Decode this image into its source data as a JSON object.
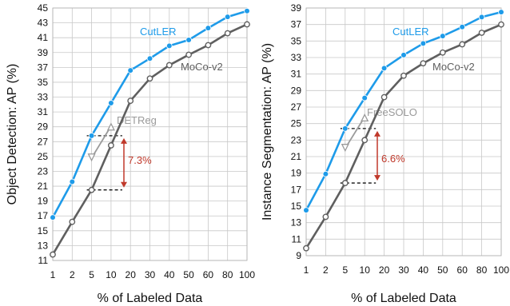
{
  "chart_data": [
    {
      "type": "line",
      "xlabel": "% of Labeled Data",
      "ylabel": "Object Detection: AP (%)",
      "x": [
        "1",
        "2",
        "5",
        "10",
        "20",
        "30",
        "40",
        "50",
        "60",
        "80",
        "100"
      ],
      "ylim": [
        11,
        45
      ],
      "yticks": [
        11,
        13,
        15,
        17,
        19,
        21,
        23,
        25,
        27,
        29,
        31,
        33,
        35,
        37,
        39,
        41,
        43,
        45
      ],
      "grid": true,
      "series": [
        {
          "name": "CutLER",
          "color": "#1e9be9",
          "values": [
            16.8,
            21.6,
            27.8,
            32.2,
            36.6,
            38.2,
            39.9,
            40.7,
            42.3,
            43.8,
            44.6
          ]
        },
        {
          "name": "MoCo-v2",
          "color": "#5f5f5f",
          "values": [
            11.8,
            16.2,
            20.5,
            26.5,
            32.5,
            35.5,
            37.3,
            38.7,
            40.0,
            41.6,
            42.8
          ]
        }
      ],
      "extra_series": [
        {
          "name": "DETReg",
          "color": "#9a9a9a",
          "x_index": [
            2,
            3
          ],
          "values": [
            24.8,
            29.1
          ]
        }
      ],
      "annotation": {
        "text": "7.3%",
        "x_index": 2,
        "y_top": 27.8,
        "y_bottom": 20.5,
        "color": "#c0392b"
      }
    },
    {
      "type": "line",
      "xlabel": "% of Labeled Data",
      "ylabel": "Instance Segmentation: AP (%)",
      "x": [
        "1",
        "2",
        "5",
        "10",
        "20",
        "30",
        "40",
        "50",
        "60",
        "80",
        "100"
      ],
      "ylim": [
        9,
        39
      ],
      "yticks": [
        9,
        11,
        13,
        15,
        17,
        19,
        21,
        23,
        25,
        27,
        29,
        31,
        33,
        35,
        37,
        39
      ],
      "grid": true,
      "series": [
        {
          "name": "CutLER",
          "color": "#1e9be9",
          "values": [
            14.5,
            18.9,
            24.4,
            28.1,
            31.7,
            33.3,
            34.7,
            35.6,
            36.7,
            37.9,
            38.5
          ]
        },
        {
          "name": "MoCo-v2",
          "color": "#5f5f5f",
          "values": [
            9.9,
            13.7,
            17.8,
            23.0,
            28.2,
            30.8,
            32.3,
            33.6,
            34.6,
            36.0,
            37.0
          ]
        }
      ],
      "extra_series": [
        {
          "name": "FreeSOLO",
          "color": "#9a9a9a",
          "x_index": [
            2,
            3
          ],
          "values": [
            22.0,
            25.8
          ]
        }
      ],
      "annotation": {
        "text": "6.6%",
        "x_index": 2,
        "y_top": 24.4,
        "y_bottom": 17.8,
        "color": "#c0392b"
      }
    }
  ]
}
